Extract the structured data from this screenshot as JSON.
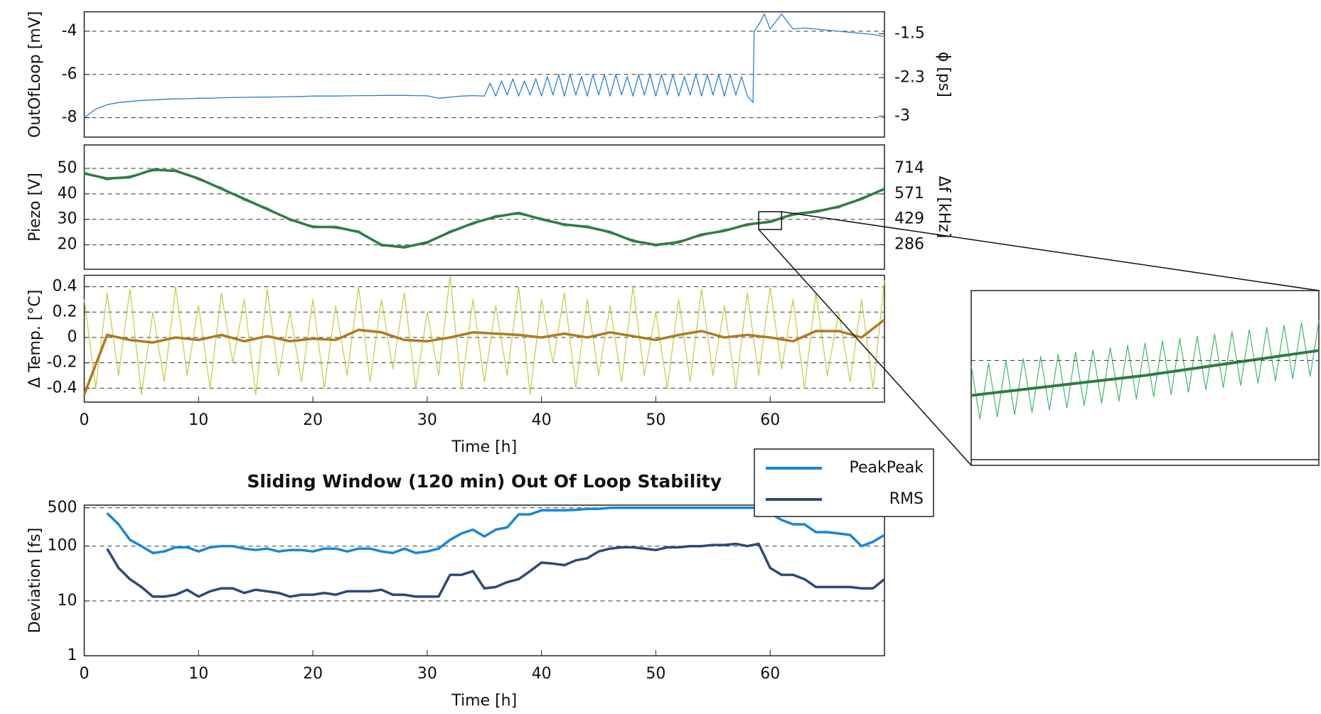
{
  "chart_data": [
    {
      "type": "line",
      "ylabel": "OutOfLoop [mV]",
      "y2label": "ϕ [ps]",
      "xlim": [
        0,
        70
      ],
      "ylim": [
        -8.9,
        -3.1
      ],
      "yticks": [
        -8,
        -6,
        -4
      ],
      "y2lim": [
        -3.38,
        -1.1
      ],
      "y2ticks": [
        -3,
        -2.3,
        -1.5
      ],
      "grid": true,
      "series": [
        {
          "color": "#2a7fd4",
          "x": [
            0,
            1,
            2,
            3,
            4,
            5,
            6,
            7,
            8,
            9,
            10,
            11,
            12,
            13,
            14,
            15,
            16,
            17,
            18,
            19,
            20,
            21,
            22,
            23,
            24,
            25,
            26,
            27,
            28,
            29,
            30,
            31,
            32,
            33,
            34,
            35,
            35.5,
            36,
            36.5,
            37,
            37.5,
            38,
            38.5,
            39,
            39.5,
            40,
            40.5,
            41,
            41.5,
            42,
            42.5,
            43,
            43.5,
            44,
            44.5,
            45,
            45.5,
            46,
            46.5,
            47,
            47.5,
            48,
            48.5,
            49,
            49.5,
            50,
            50.5,
            51,
            51.5,
            52,
            52.5,
            53,
            53.5,
            54,
            54.5,
            55,
            55.5,
            56,
            56.5,
            57,
            57.5,
            58,
            58.5,
            58.6,
            59,
            59.5,
            60,
            61,
            62,
            63,
            64,
            65,
            66,
            67,
            68,
            69,
            70
          ],
          "values": [
            -8.0,
            -7.6,
            -7.4,
            -7.3,
            -7.25,
            -7.2,
            -7.18,
            -7.15,
            -7.13,
            -7.12,
            -7.1,
            -7.1,
            -7.08,
            -7.07,
            -7.06,
            -7.05,
            -7.05,
            -7.04,
            -7.03,
            -7.02,
            -7.0,
            -7.0,
            -7.0,
            -6.99,
            -6.98,
            -6.98,
            -6.97,
            -6.97,
            -6.97,
            -6.98,
            -6.99,
            -7.1,
            -7.05,
            -7.0,
            -6.98,
            -7.0,
            -6.4,
            -7.0,
            -6.3,
            -6.95,
            -6.2,
            -7.0,
            -6.3,
            -6.95,
            -6.2,
            -7.0,
            -6.1,
            -6.95,
            -6.0,
            -7.0,
            -6.0,
            -6.95,
            -6.1,
            -7.0,
            -6.0,
            -6.95,
            -6.0,
            -7.0,
            -6.0,
            -6.95,
            -6.1,
            -7.0,
            -6.0,
            -6.95,
            -6.0,
            -7.0,
            -6.0,
            -6.95,
            -6.0,
            -7.0,
            -6.1,
            -6.95,
            -6.0,
            -7.0,
            -6.0,
            -6.95,
            -6.0,
            -7.0,
            -6.0,
            -6.95,
            -6.1,
            -7.0,
            -7.3,
            -4.0,
            -3.7,
            -3.2,
            -3.9,
            -3.2,
            -3.9,
            -3.85,
            -3.9,
            -3.95,
            -4.0,
            -4.05,
            -4.1,
            -4.15,
            -4.25
          ]
        }
      ]
    },
    {
      "type": "line",
      "ylabel": "Piezo [V]",
      "y2label": "Δf [kHz]",
      "xlim": [
        0,
        70
      ],
      "ylim": [
        10.4,
        59.2
      ],
      "yticks": [
        20,
        30,
        40,
        50
      ],
      "y2lim": [
        148.6,
        845.4
      ],
      "y2ticks": [
        286,
        429,
        571,
        714
      ],
      "grid": true,
      "series": [
        {
          "color": "#3cb86a",
          "width": 1.2,
          "x": [
            0,
            2,
            4,
            6,
            8,
            10,
            12,
            14,
            16,
            18,
            20,
            22,
            24,
            26,
            28,
            30,
            32,
            34,
            36,
            38,
            40,
            42,
            44,
            46,
            48,
            50,
            52,
            54,
            56,
            58,
            60,
            62,
            64,
            66,
            68,
            70
          ],
          "values": [
            48.6,
            45.4,
            47.1,
            48.9,
            49.6,
            45.4,
            42.6,
            37.4,
            34.6,
            29.4,
            27.6,
            26.4,
            25.6,
            19.4,
            19.6,
            20.4,
            25.6,
            27.9,
            31.6,
            31.9,
            30.6,
            27.4,
            27.6,
            24.4,
            22.1,
            19.4,
            21.6,
            23.4,
            26.1,
            27.4,
            29.6,
            31.4,
            33.6,
            34.4,
            38.6,
            41.4
          ]
        },
        {
          "color": "#2e7d45",
          "width": 3.5,
          "x": [
            0,
            2,
            4,
            6,
            8,
            10,
            12,
            14,
            16,
            18,
            20,
            22,
            24,
            26,
            28,
            30,
            32,
            34,
            36,
            38,
            40,
            42,
            44,
            46,
            48,
            50,
            52,
            54,
            56,
            58,
            60,
            62,
            64,
            66,
            68,
            70
          ],
          "values": [
            48,
            46,
            46.5,
            49.5,
            49,
            46,
            42,
            38,
            34,
            30,
            27,
            27,
            25,
            20,
            19,
            21,
            25,
            28.5,
            31,
            32.5,
            30,
            28,
            27,
            25,
            21.5,
            20,
            21,
            24,
            25.5,
            28,
            29,
            32,
            33,
            35,
            38,
            42
          ]
        }
      ]
    },
    {
      "type": "line",
      "ylabel": "Δ Temp. [°C]",
      "xlabel": "Time [h]",
      "xlim": [
        0,
        70
      ],
      "xticks": [
        0,
        10,
        20,
        30,
        40,
        50,
        60
      ],
      "ylim": [
        -0.51,
        0.49
      ],
      "yticks": [
        -0.4,
        -0.2,
        0,
        0.2,
        0.4
      ],
      "grid": true,
      "series": [
        {
          "color": "#c8c83a",
          "width": 1.2,
          "x": [
            0,
            1,
            2,
            3,
            4,
            5,
            6,
            7,
            8,
            9,
            10,
            11,
            12,
            13,
            14,
            15,
            16,
            17,
            18,
            19,
            20,
            21,
            22,
            23,
            24,
            25,
            26,
            27,
            28,
            29,
            30,
            31,
            32,
            33,
            34,
            35,
            36,
            37,
            38,
            39,
            40,
            41,
            42,
            43,
            44,
            45,
            46,
            47,
            48,
            49,
            50,
            51,
            52,
            53,
            54,
            55,
            56,
            57,
            58,
            59,
            60,
            61,
            62,
            63,
            64,
            65,
            66,
            67,
            68,
            69,
            70
          ],
          "values": [
            0.3,
            -0.4,
            0.35,
            -0.3,
            0.38,
            -0.45,
            0.2,
            -0.35,
            0.4,
            -0.3,
            0.25,
            -0.4,
            0.35,
            -0.2,
            0.3,
            -0.45,
            0.38,
            -0.3,
            0.2,
            -0.35,
            0.3,
            -0.4,
            0.25,
            -0.3,
            0.4,
            -0.35,
            0.3,
            -0.25,
            0.35,
            -0.4,
            0.2,
            -0.3,
            0.48,
            -0.4,
            0.3,
            -0.35,
            0.25,
            -0.3,
            0.4,
            -0.45,
            0.3,
            -0.2,
            0.35,
            -0.4,
            0.3,
            -0.3,
            0.25,
            -0.35,
            0.4,
            -0.3,
            0.2,
            -0.4,
            0.3,
            -0.35,
            0.38,
            -0.3,
            0.25,
            -0.4,
            0.35,
            -0.3,
            0.4,
            -0.25,
            0.3,
            -0.4,
            0.35,
            -0.3,
            0.2,
            -0.35,
            0.3,
            -0.4,
            0.45
          ]
        },
        {
          "color": "#b07a20",
          "width": 3.5,
          "x": [
            0,
            2,
            4,
            6,
            8,
            10,
            12,
            14,
            16,
            18,
            20,
            22,
            24,
            26,
            28,
            30,
            32,
            34,
            36,
            38,
            40,
            42,
            44,
            46,
            48,
            50,
            52,
            54,
            56,
            58,
            60,
            62,
            64,
            66,
            68,
            70
          ],
          "values": [
            -0.45,
            0.02,
            -0.02,
            -0.04,
            0.0,
            -0.02,
            0.02,
            -0.03,
            0.01,
            -0.03,
            -0.01,
            -0.02,
            0.06,
            0.04,
            -0.02,
            -0.03,
            0.0,
            0.04,
            0.03,
            0.02,
            0.0,
            0.03,
            0.0,
            0.04,
            0.01,
            -0.02,
            0.02,
            0.05,
            0.0,
            0.02,
            0.0,
            -0.03,
            0.05,
            0.05,
            0.0,
            0.14
          ]
        }
      ]
    },
    {
      "type": "line",
      "title": "Sliding Window (120 min) Out Of Loop Stability",
      "ylabel": "Deviation [fs]",
      "xlabel": "Time [h]",
      "xlim": [
        0,
        70
      ],
      "xticks": [
        0,
        10,
        20,
        30,
        40,
        50,
        60
      ],
      "ylim": [
        1,
        560
      ],
      "yticks": [
        1,
        10,
        100,
        500
      ],
      "yscale": "log",
      "grid": true,
      "legend": "upper right",
      "series": [
        {
          "name": "PeakPeak",
          "color": "#1a86d6",
          "width": 3.5,
          "x": [
            2,
            3,
            4,
            5,
            6,
            7,
            8,
            9,
            10,
            11,
            12,
            13,
            14,
            15,
            16,
            17,
            18,
            19,
            20,
            21,
            22,
            23,
            24,
            25,
            26,
            27,
            28,
            29,
            30,
            31,
            32,
            33,
            34,
            35,
            36,
            37,
            38,
            39,
            40,
            41,
            42,
            43,
            44,
            45,
            46,
            47,
            48,
            49,
            50,
            51,
            52,
            53,
            54,
            55,
            56,
            57,
            58,
            59,
            60,
            61,
            62,
            63,
            64,
            65,
            66,
            67,
            68,
            69,
            70
          ],
          "values": [
            400,
            250,
            130,
            100,
            75,
            80,
            95,
            95,
            80,
            95,
            100,
            100,
            90,
            85,
            90,
            80,
            85,
            85,
            80,
            90,
            90,
            80,
            90,
            90,
            80,
            75,
            90,
            75,
            80,
            90,
            130,
            170,
            200,
            150,
            200,
            220,
            380,
            380,
            450,
            450,
            450,
            460,
            480,
            480,
            500,
            500,
            500,
            500,
            500,
            500,
            500,
            500,
            500,
            500,
            500,
            500,
            500,
            500,
            400,
            300,
            250,
            250,
            180,
            180,
            170,
            160,
            100,
            120,
            160
          ]
        },
        {
          "name": "RMS",
          "color": "#2c4a7c",
          "width": 3.5,
          "x": [
            2,
            3,
            4,
            5,
            6,
            7,
            8,
            9,
            10,
            11,
            12,
            13,
            14,
            15,
            16,
            17,
            18,
            19,
            20,
            21,
            22,
            23,
            24,
            25,
            26,
            27,
            28,
            29,
            30,
            31,
            32,
            33,
            34,
            35,
            36,
            37,
            38,
            39,
            40,
            41,
            42,
            43,
            44,
            45,
            46,
            47,
            48,
            49,
            50,
            51,
            52,
            53,
            54,
            55,
            56,
            57,
            58,
            59,
            60,
            61,
            62,
            63,
            64,
            65,
            66,
            67,
            68,
            69,
            70
          ],
          "values": [
            90,
            40,
            25,
            18,
            12,
            12,
            13,
            16,
            12,
            15,
            17,
            17,
            14,
            16,
            15,
            14,
            12,
            13,
            13,
            14,
            13,
            15,
            15,
            15,
            16,
            13,
            13,
            12,
            12,
            12,
            30,
            30,
            35,
            17,
            18,
            22,
            25,
            35,
            50,
            48,
            45,
            55,
            60,
            80,
            90,
            95,
            95,
            90,
            85,
            95,
            95,
            100,
            100,
            105,
            105,
            110,
            100,
            110,
            40,
            30,
            30,
            25,
            18,
            18,
            18,
            18,
            17,
            17,
            25
          ]
        }
      ]
    },
    {
      "type": "line",
      "xlim": [
        59,
        61
      ],
      "ylim": [
        26,
        33
      ],
      "series": [
        {
          "color": "#3cb86a",
          "width": 1.2,
          "x": [
            59,
            59.05,
            59.1,
            59.15,
            59.2,
            59.25,
            59.3,
            59.35,
            59.4,
            59.45,
            59.5,
            59.55,
            59.6,
            59.65,
            59.7,
            59.75,
            59.8,
            59.85,
            59.9,
            59.95,
            60,
            60.05,
            60.1,
            60.15,
            60.2,
            60.25,
            60.3,
            60.35,
            60.4,
            60.45,
            60.5,
            60.55,
            60.6,
            60.65,
            60.7,
            60.75,
            60.8,
            60.85,
            60.9,
            60.95,
            61
          ],
          "values": [
            30.0,
            27.85,
            30.09,
            27.94,
            30.18,
            28.03,
            30.27,
            28.12,
            30.36,
            28.21,
            30.45,
            28.3,
            30.54,
            28.39,
            30.63,
            28.48,
            30.72,
            28.57,
            30.81,
            28.66,
            30.9,
            28.75,
            30.99,
            28.84,
            31.08,
            28.93,
            31.17,
            29.02,
            31.26,
            29.11,
            31.35,
            29.2,
            31.44,
            29.29,
            31.53,
            29.38,
            31.62,
            29.47,
            31.71,
            29.56,
            31.8
          ]
        },
        {
          "color": "#2e7d45",
          "width": 4,
          "x": [
            59,
            59.5,
            60,
            60.5,
            61
          ],
          "values": [
            28.8,
            29.2,
            29.6,
            30.1,
            30.6
          ]
        }
      ]
    }
  ]
}
